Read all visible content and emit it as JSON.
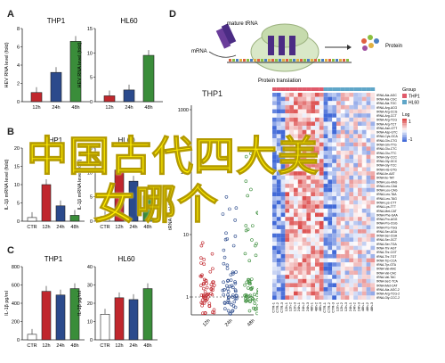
{
  "panels": {
    "A": {
      "letter": "A",
      "charts": [
        {
          "title": "THP1",
          "ylabel": "HEV RNA level (fold)",
          "ticks": [
            "0",
            "2",
            "4",
            "6",
            "8"
          ],
          "ymax": 8,
          "categories": [
            "12h",
            "24h",
            "48h"
          ],
          "values": [
            1.0,
            3.2,
            6.6
          ],
          "colors": [
            "#c0272d",
            "#2b4a8c",
            "#3a8d3a"
          ]
        },
        {
          "title": "HL60",
          "ylabel": "HEV RNA level (fold)",
          "ticks": [
            "0",
            "5",
            "10",
            "15"
          ],
          "ymax": 15,
          "categories": [
            "12h",
            "24h",
            "48h"
          ],
          "values": [
            1.2,
            2.4,
            9.5
          ],
          "colors": [
            "#c0272d",
            "#2b4a8c",
            "#3a8d3a"
          ]
        }
      ]
    },
    "B": {
      "letter": "B",
      "charts": [
        {
          "title": "THP1",
          "ylabel": "IL-1β mRNA level (fold)",
          "ticks": [
            "0",
            "5",
            "10",
            "15",
            "20"
          ],
          "ymax": 20,
          "categories": [
            "CTR",
            "12h",
            "24h",
            "48h"
          ],
          "values": [
            1.0,
            10.0,
            4.2,
            1.6
          ],
          "colors": [
            "#ffffff",
            "#c0272d",
            "#2b4a8c",
            "#3a8d3a"
          ]
        },
        {
          "title": "HL60",
          "ylabel": "IL-1β mRNA level (fold)",
          "ticks": [
            "0",
            "5",
            "10",
            "15"
          ],
          "ymax": 15,
          "categories": [
            "CTR",
            "12h",
            "24h",
            "48h"
          ],
          "values": [
            1.0,
            10.5,
            8.2,
            5.2
          ],
          "colors": [
            "#ffffff",
            "#c0272d",
            "#2b4a8c",
            "#3a8d3a"
          ]
        }
      ]
    },
    "C": {
      "letter": "C",
      "charts": [
        {
          "title": "THP1",
          "ylabel": "IL-1β pg/ml",
          "ticks": [
            "0",
            "200",
            "400",
            "600",
            "800"
          ],
          "ymax": 800,
          "categories": [
            "CTR",
            "12h",
            "24h",
            "48h"
          ],
          "values": [
            60,
            530,
            490,
            560
          ],
          "colors": [
            "#ffffff",
            "#c0272d",
            "#2b4a8c",
            "#3a8d3a"
          ]
        },
        {
          "title": "HL60",
          "ylabel": "IL-1β pg/ml",
          "ticks": [
            "0",
            "10",
            "20",
            "30",
            "40"
          ],
          "ymax": 40,
          "categories": [
            "CTR",
            "12h",
            "24h",
            "48h"
          ],
          "values": [
            14,
            23,
            22,
            28
          ],
          "colors": [
            "#ffffff",
            "#c0272d",
            "#2b4a8c",
            "#3a8d3a"
          ]
        }
      ]
    },
    "D": {
      "letter": "D",
      "diagram": {
        "mature_trna": "mature tRNA",
        "mrna": "mRNA",
        "protein": "Protein",
        "caption": "Protein translation"
      },
      "scatter": {
        "title": "THP1",
        "ylabel": "tRNA level (fold)",
        "ticks": [
          "1",
          "10",
          "100",
          "1000"
        ],
        "categories": [
          "12h",
          "24h",
          "48h"
        ],
        "colors": [
          "#c0272d",
          "#2b4a8c",
          "#3a8d3a"
        ]
      },
      "heatmap": {
        "legend_title": "Group",
        "groups": [
          "THP1",
          "HL60"
        ],
        "group_colors": [
          "#e05a6a",
          "#5fa6c8"
        ],
        "scale_label": "Log",
        "scale_ticks": [
          "1",
          "-1"
        ],
        "rows": [
          "tRNA-Ala-AGC",
          "tRNA-Ala-CGC",
          "tRNA-Ala-TGC",
          "tRNA-Arg-ACG",
          "tRNA-Arg-CCG",
          "tRNA-Arg-CCT",
          "tRNA-Arg-TCG",
          "tRNA-Arg-TCT",
          "tRNA-Asn-GTT",
          "tRNA-Asp-GTC",
          "tRNA-Cys-GCA",
          "tRNA-Gln-CTG",
          "tRNA-Gln-TTG",
          "tRNA-Glu-CTC",
          "tRNA-Glu-TTC",
          "tRNA-Gly-CCC",
          "tRNA-Gly-GCC",
          "tRNA-Gly-TCC",
          "tRNA-His-GTG",
          "tRNA-Ile-AAT",
          "tRNA-Ile-TAT",
          "tRNA-Leu-AAG",
          "tRNA-Leu-CAA",
          "tRNA-Leu-CAG",
          "tRNA-Leu-TAA",
          "tRNA-Leu-TAG",
          "tRNA-Lys-CTT",
          "tRNA-Lys-TTT",
          "tRNA-Met-CAT",
          "tRNA-Phe-GAA",
          "tRNA-Pro-AGG",
          "tRNA-Pro-CGG",
          "tRNA-Pro-TGG",
          "tRNA-Ser-AGA",
          "tRNA-Ser-CGA",
          "tRNA-Ser-GCT",
          "tRNA-Ser-TGA",
          "tRNA-Thr-AGT",
          "tRNA-Thr-CGT",
          "tRNA-Thr-TGT",
          "tRNA-Trp-CCA",
          "tRNA-Tyr-GTA",
          "tRNA-Val-AAC",
          "tRNA-Val-CAC",
          "tRNA-Val-TAC",
          "tRNA-SeC-TCA",
          "tRNA-iMet-CAT",
          "tRNA-Ala-AGC-2",
          "tRNA-Arg-TCG-2",
          "tRNA-Gly-CCC-2"
        ],
        "cols": [
          "CTR-1",
          "CTR-2",
          "CTR-3",
          "12h-1",
          "12h-2",
          "12h-3",
          "24h-1",
          "24h-2",
          "24h-3",
          "48h-1",
          "48h-2",
          "48h-3",
          "CTR-1",
          "CTR-2",
          "CTR-3",
          "12h-1",
          "12h-2",
          "12h-3",
          "24h-1",
          "24h-2",
          "24h-3",
          "48h-1",
          "48h-2",
          "48h-3"
        ]
      }
    }
  },
  "overlay": {
    "line1": "中国古代四大美",
    "line2": "女哪个"
  }
}
